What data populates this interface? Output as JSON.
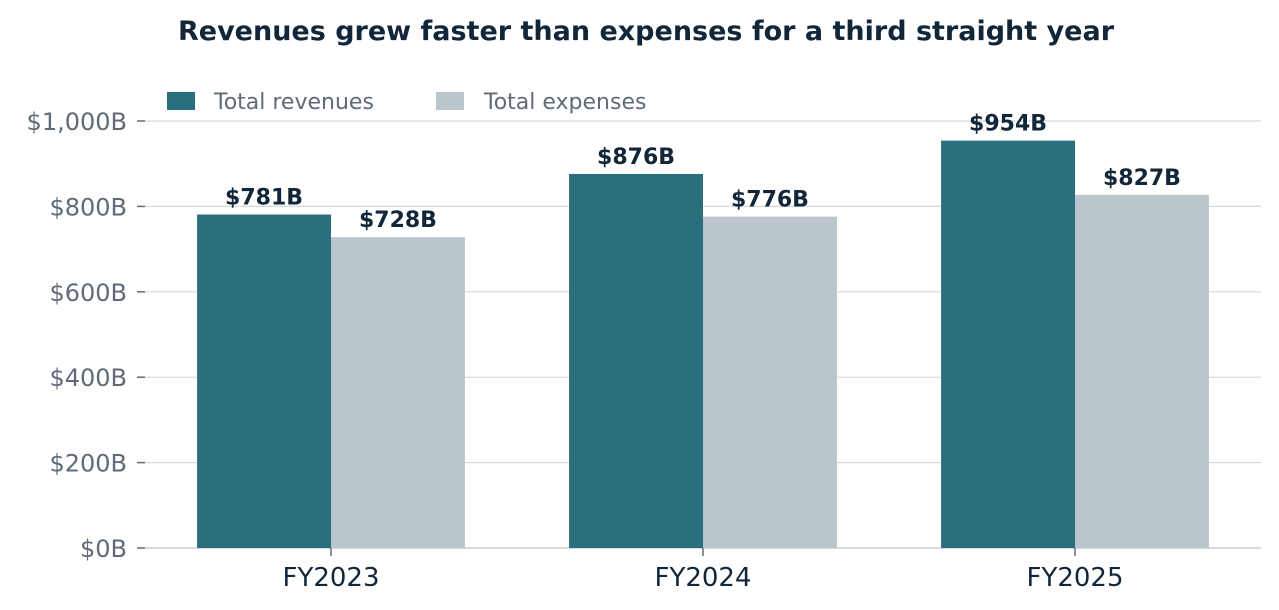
{
  "chart_data": {
    "type": "bar",
    "title": "Revenues grew faster than expenses for a third straight year",
    "xlabel": "",
    "ylabel": "",
    "categories": [
      "FY2023",
      "FY2024",
      "FY2025"
    ],
    "series": [
      {
        "name": "Total revenues",
        "values": [
          781,
          876,
          954
        ],
        "labels": [
          "$781B",
          "$876B",
          "$954B"
        ],
        "color": "#2b6f7e"
      },
      {
        "name": "Total expenses",
        "values": [
          728,
          776,
          827
        ],
        "labels": [
          "$728B",
          "$776B",
          "$827B"
        ],
        "color": "#bac5cc"
      }
    ],
    "ylim": [
      0,
      1000
    ],
    "yticks": [
      0,
      200,
      400,
      600,
      800,
      1000
    ],
    "ytick_labels": [
      "$0B",
      "$200B",
      "$400B",
      "$600B",
      "$800B",
      "$1,000B"
    ],
    "grid": "horizontal",
    "legend_position": "top-left",
    "colors": {
      "title": "#12263a",
      "tick_label": "#5f6b78",
      "category_label": "#12263a",
      "value_label": "#12263a",
      "grid": "#d5dadd",
      "axis": "#c9cfd3"
    }
  }
}
